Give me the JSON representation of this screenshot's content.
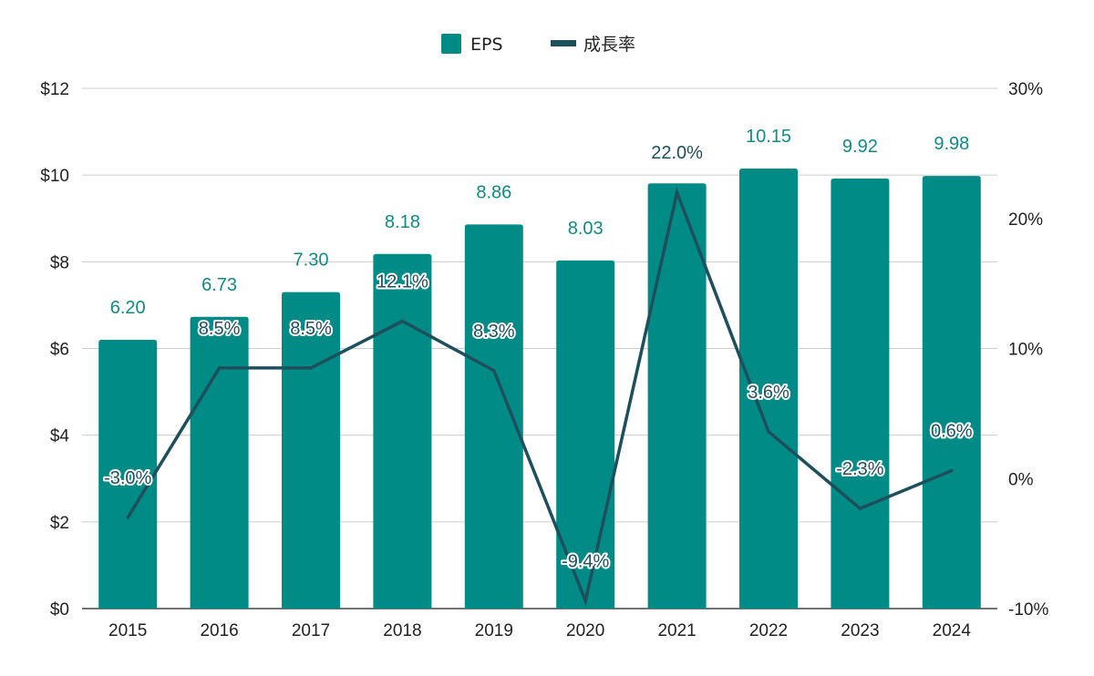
{
  "chart_data": {
    "type": "bar",
    "categories": [
      "2015",
      "2016",
      "2017",
      "2018",
      "2019",
      "2020",
      "2021",
      "2022",
      "2023",
      "2024"
    ],
    "series": [
      {
        "name": "EPS",
        "type": "bar",
        "axis": "left",
        "color": "#008b86",
        "values": [
          6.2,
          6.73,
          7.3,
          8.18,
          8.86,
          8.03,
          9.81,
          10.15,
          9.92,
          9.98
        ],
        "labels": [
          "6.20",
          "6.73",
          "7.30",
          "8.18",
          "8.86",
          "8.03",
          "",
          "10.15",
          "9.92",
          "9.98"
        ]
      },
      {
        "name": "成長率",
        "type": "line",
        "axis": "right",
        "color": "#1d4f5c",
        "values": [
          -3.0,
          8.5,
          8.5,
          12.1,
          8.3,
          -9.4,
          22.0,
          3.6,
          -2.3,
          0.6
        ],
        "labels": [
          "-3.0%",
          "8.5%",
          "8.5%",
          "12.1%",
          "8.3%",
          "-9.4%",
          "22.0%",
          "3.6%",
          "-2.3%",
          "0.6%"
        ]
      }
    ],
    "y_left": {
      "ylim": [
        0,
        12
      ],
      "ticks": [
        0,
        2,
        4,
        6,
        8,
        10,
        12
      ],
      "tick_labels": [
        "$0",
        "$2",
        "$4",
        "$6",
        "$8",
        "$10",
        "$12"
      ]
    },
    "y_right": {
      "ylim": [
        -10,
        30
      ],
      "ticks": [
        -10,
        0,
        10,
        20,
        30
      ],
      "tick_labels": [
        "-10%",
        "0%",
        "10%",
        "20%",
        "30%"
      ]
    },
    "title": "",
    "xlabel": "",
    "ylabel": "",
    "grid": true,
    "legend": {
      "position": "top-center",
      "entries": [
        "EPS",
        "成長率"
      ]
    }
  }
}
